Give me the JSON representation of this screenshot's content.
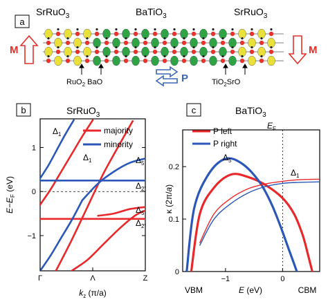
{
  "figure": {
    "panel_a": {
      "label": "a",
      "left_material": "SrRuO3",
      "middle_material": "BaTiO3",
      "right_material": "SrRuO3",
      "left_interface": "RuO2 BaO",
      "right_interface": "TiO2 SrO",
      "magnetization_label": "M",
      "polarization_label": "P",
      "colors": {
        "Sr": "#e9e13a",
        "Ba": "#2fa345",
        "O": "#e8332c",
        "Ru": "#222222",
        "Ti": "#222222",
        "arrow_red": "#e0302a",
        "arrow_blue": "#3a67b5"
      }
    },
    "panel_b": {
      "label": "b",
      "title": "SrRuO3",
      "ylabel": "E−E_F (eV)",
      "xlabel": "k_z (π/a)",
      "legend": [
        {
          "name": "majority",
          "color": "#e8282b"
        },
        {
          "name": "minority",
          "color": "#2a57b8"
        }
      ],
      "band_labels": [
        "Δ1",
        "Δ1",
        "Δ5",
        "Δ2'",
        "Δ5",
        "Δ2'"
      ]
    },
    "panel_c": {
      "label": "c",
      "title": "BaTiO3",
      "ylabel": "κ (2π/a)",
      "xlabel": "E (eV)",
      "fermi_label": "E_F",
      "vbm_label": "VBM",
      "cbm_label": "CBM",
      "legend": [
        {
          "name": "P left",
          "color": "#e8282b"
        },
        {
          "name": "P right",
          "color": "#2a57b8"
        }
      ],
      "band_labels": [
        "Δ5",
        "Δ1"
      ]
    }
  },
  "chart_data": [
    {
      "type": "line",
      "panel": "b",
      "title": "SrRuO3",
      "xlabel": "k_z (π/a)",
      "ylabel": "E−E_F (eV)",
      "xticks": [
        "Γ",
        "Λ",
        "Z"
      ],
      "x_tick_positions": [
        0,
        0.5,
        1
      ],
      "ylim": [
        -1.8,
        1.65
      ],
      "yticks": [
        -1,
        0,
        1
      ],
      "reference_line_y": 0,
      "series": [
        {
          "name": "majority",
          "color": "#e8282b",
          "x": [
            0.0,
            0.1,
            0.2,
            0.3,
            0.4,
            0.5
          ],
          "y": [
            -0.3,
            0.05,
            0.45,
            0.85,
            1.25,
            1.62
          ]
        },
        {
          "name": "majority",
          "color": "#e8282b",
          "x": [
            0.15,
            0.3,
            0.45,
            0.6,
            0.75,
            0.88
          ],
          "y": [
            -1.8,
            -1.1,
            -0.35,
            0.4,
            1.05,
            1.6
          ]
        },
        {
          "name": "majority",
          "color": "#e8282b",
          "x": [
            0.3,
            0.45,
            0.6,
            0.75,
            0.9,
            1.0
          ],
          "y": [
            -1.8,
            -1.55,
            -1.2,
            -0.85,
            -0.55,
            -0.43
          ]
        },
        {
          "name": "majority",
          "color": "#e8282b",
          "x": [
            0.55,
            0.7,
            0.85,
            1.0
          ],
          "y": [
            -0.55,
            -0.5,
            -0.4,
            -0.35
          ]
        },
        {
          "name": "majority",
          "color": "#e8282b",
          "x": [
            0.0,
            1.0
          ],
          "y": [
            -0.62,
            -0.62
          ]
        },
        {
          "name": "minority",
          "color": "#2a57b8",
          "x": [
            0.0,
            0.08,
            0.16,
            0.24,
            0.32
          ],
          "y": [
            0.3,
            0.6,
            0.95,
            1.3,
            1.62
          ]
        },
        {
          "name": "minority",
          "color": "#2a57b8",
          "x": [
            0.0,
            0.1,
            0.2,
            0.3,
            0.4
          ],
          "y": [
            -1.8,
            -1.45,
            -1.05,
            -0.65,
            -0.2
          ]
        },
        {
          "name": "minority",
          "color": "#2a57b8",
          "x": [
            0.4,
            0.55,
            0.7,
            0.85,
            1.0
          ],
          "y": [
            -0.2,
            0.18,
            0.45,
            0.65,
            0.75
          ]
        },
        {
          "name": "minority",
          "color": "#2a57b8",
          "x": [
            0.0,
            1.0
          ],
          "y": [
            0.25,
            0.25
          ]
        }
      ]
    },
    {
      "type": "line",
      "panel": "c",
      "title": "BaTiO3",
      "xlabel": "E (eV)",
      "ylabel": "κ (2π/a)",
      "xlim": [
        -1.75,
        0.65
      ],
      "ylim": [
        0,
        0.27
      ],
      "xticks": [
        -1,
        0
      ],
      "yticks": [
        0,
        0.1,
        0.2
      ],
      "fermi_level_x": 0,
      "series": [
        {
          "name": "P left",
          "color": "#e8282b",
          "x": [
            -1.6,
            -1.45,
            -1.2,
            -0.9,
            -0.6,
            -0.3,
            0.0,
            0.2,
            0.35,
            0.45,
            0.52
          ],
          "y": [
            0.0,
            0.11,
            0.16,
            0.185,
            0.18,
            0.165,
            0.14,
            0.11,
            0.07,
            0.03,
            0.0
          ]
        },
        {
          "name": "P right",
          "color": "#2a57b8",
          "x": [
            -1.68,
            -1.55,
            -1.3,
            -1.0,
            -0.7,
            -0.4,
            -0.2,
            -0.05,
            0.1,
            0.2,
            0.25
          ],
          "y": [
            0.0,
            0.12,
            0.185,
            0.215,
            0.205,
            0.17,
            0.13,
            0.09,
            0.045,
            0.015,
            0.0
          ]
        },
        {
          "name": "P left Δ1",
          "color": "#e8282b",
          "x": [
            -1.45,
            -1.2,
            -0.9,
            -0.6,
            -0.3,
            0.0,
            0.3,
            0.65
          ],
          "y": [
            0.055,
            0.11,
            0.14,
            0.158,
            0.167,
            0.172,
            0.175,
            0.176
          ]
        },
        {
          "name": "P right Δ1",
          "color": "#2a57b8",
          "x": [
            -1.45,
            -1.2,
            -0.9,
            -0.6,
            -0.3,
            0.0,
            0.3,
            0.65
          ],
          "y": [
            0.05,
            0.1,
            0.13,
            0.15,
            0.162,
            0.168,
            0.17,
            0.171
          ]
        }
      ]
    }
  ]
}
